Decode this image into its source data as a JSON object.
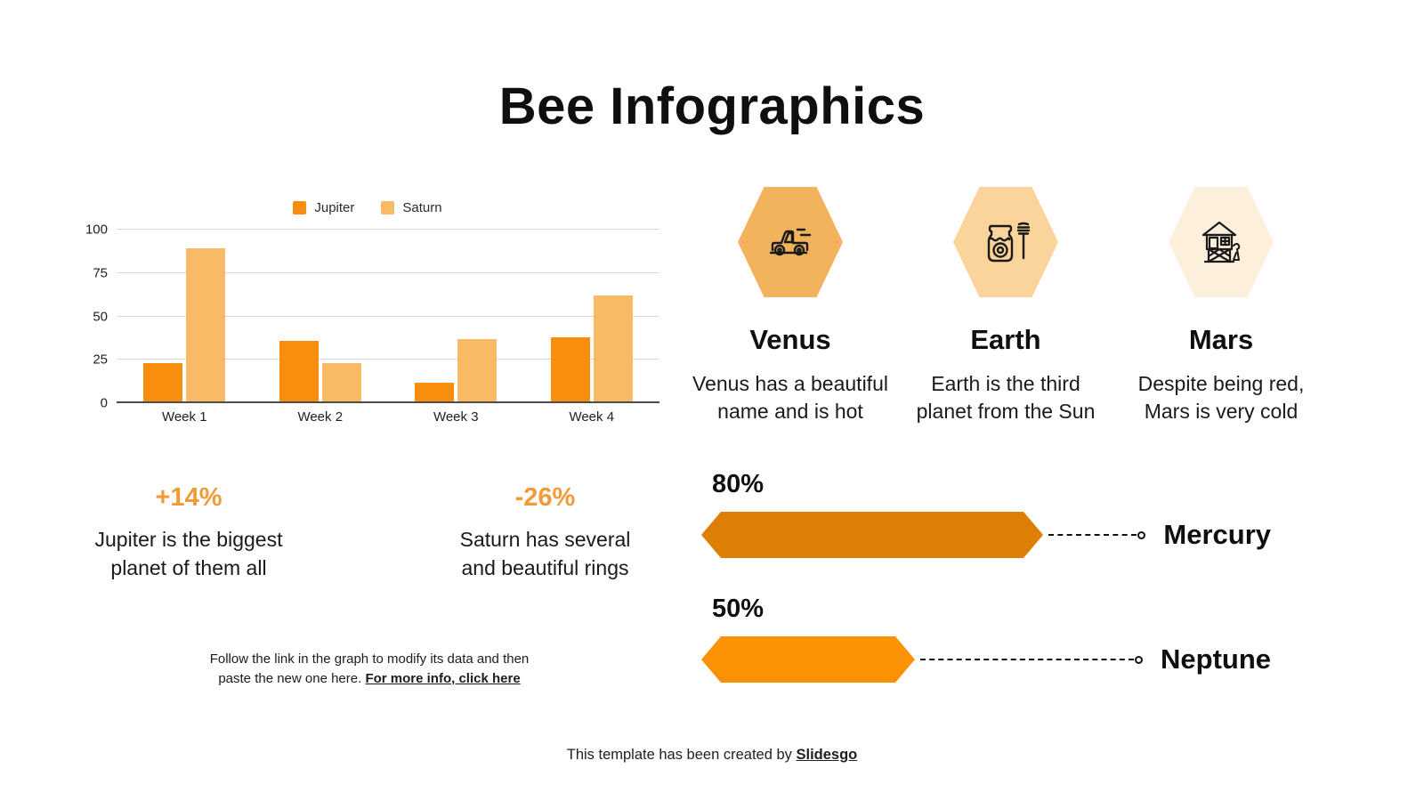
{
  "title": "Bee Infographics",
  "colors": {
    "accent_orange": "#F29A38",
    "jupiter_bar": "#F98E0E",
    "saturn_bar": "#F9BA66",
    "mercury_bar": "#DD7F04",
    "neptune_bar": "#FB9203",
    "grid_line": "#D9D9D9",
    "axis_line": "#4D4D4D"
  },
  "chart_data": {
    "type": "bar",
    "categories": [
      "Week 1",
      "Week 2",
      "Week 3",
      "Week 4"
    ],
    "series": [
      {
        "name": "Jupiter",
        "color": "#F98E0E",
        "values": [
          23,
          36,
          12,
          38
        ]
      },
      {
        "name": "Saturn",
        "color": "#F9BA66",
        "values": [
          89,
          23,
          37,
          62
        ]
      }
    ],
    "title": "",
    "xlabel": "",
    "ylabel": "",
    "ylim": [
      0,
      100
    ],
    "yticks": [
      0,
      25,
      50,
      75,
      100
    ],
    "grid": true,
    "legend_position": "top"
  },
  "stats": [
    {
      "value": "+14%",
      "description": "Jupiter is the biggest planet of them all"
    },
    {
      "value": "-26%",
      "description": "Saturn has several and beautiful rings"
    }
  ],
  "note": {
    "line1": "Follow the link in the graph to modify its data and then",
    "line2_prefix": "paste the new one here. ",
    "link_label": "For more info, click here"
  },
  "planets": [
    {
      "name": "Venus",
      "description": "Venus has a beautiful name and is hot",
      "hex_color": "#F2B35C",
      "icon": "truck-icon"
    },
    {
      "name": "Earth",
      "description": "Earth is the third planet from the Sun",
      "hex_color": "#FAD49A",
      "icon": "honey-jar-icon"
    },
    {
      "name": "Mars",
      "description": "Despite being red, Mars is very cold",
      "hex_color": "#FCEFDC",
      "icon": "treehouse-icon"
    }
  ],
  "progress_bars": [
    {
      "label": "Mercury",
      "percent": 80,
      "percent_label": "80%",
      "color": "#DD7F04"
    },
    {
      "label": "Neptune",
      "percent": 50,
      "percent_label": "50%",
      "color": "#FB9203"
    }
  ],
  "footer": {
    "prefix": "This template has been created by ",
    "link_label": "Slidesgo"
  }
}
